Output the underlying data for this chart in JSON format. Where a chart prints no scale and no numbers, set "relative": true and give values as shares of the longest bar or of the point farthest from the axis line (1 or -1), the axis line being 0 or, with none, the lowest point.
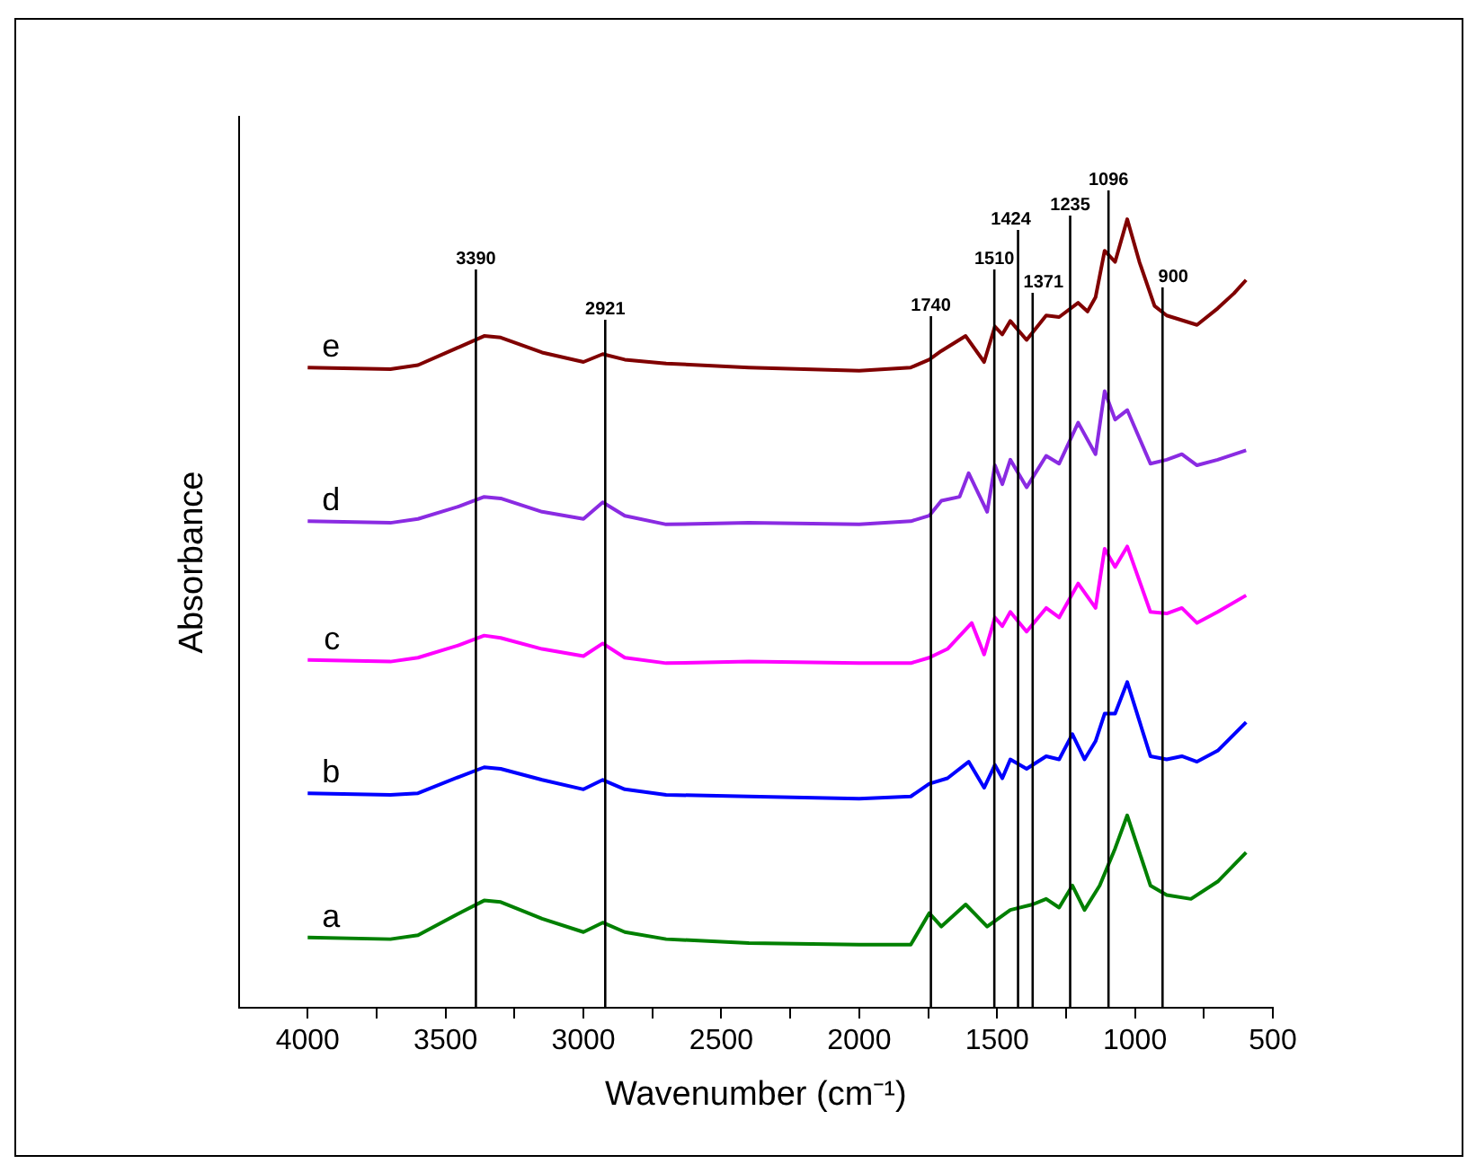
{
  "chart_data": {
    "type": "line",
    "relative": true,
    "xlabel": "Wavenumber (cm⁻¹)",
    "ylabel": "Absorbance",
    "xlim": [
      4250,
      500
    ],
    "xticks": [
      4000,
      {
        "value": 3750,
        "label": null
      },
      3500,
      {
        "value": 3250,
        "label": null
      },
      3000,
      {
        "value": 2750,
        "label": null
      },
      2500,
      {
        "value": 2250,
        "label": null
      },
      2000,
      {
        "value": 1750,
        "label": null
      },
      1500,
      {
        "value": 1250,
        "label": null
      },
      1000,
      {
        "value": 750,
        "label": null
      },
      500
    ],
    "grid": false,
    "legend": false,
    "marker": "none",
    "line_style": "solid",
    "ref_lines": [
      {
        "axis": "x",
        "value": 3390,
        "label": "3390",
        "color": "#000000"
      },
      {
        "axis": "x",
        "value": 2921,
        "label": "2921",
        "color": "#000000"
      },
      {
        "axis": "x",
        "value": 1740,
        "label": "1740",
        "color": "#000000"
      },
      {
        "axis": "x",
        "value": 1510,
        "label": "1510",
        "color": "#000000"
      },
      {
        "axis": "x",
        "value": 1424,
        "label": "1424",
        "color": "#000000"
      },
      {
        "axis": "x",
        "value": 1371,
        "label": "1371",
        "color": "#000000"
      },
      {
        "axis": "x",
        "value": 1235,
        "label": "1235",
        "color": "#000000"
      },
      {
        "axis": "x",
        "value": 1096,
        "label": "1096",
        "color": "#000000"
      },
      {
        "axis": "x",
        "value": 900,
        "label": "900",
        "color": "#000000"
      }
    ],
    "series": [
      {
        "name": "a",
        "color": "#008000",
        "x": [
          4000,
          3700,
          3600,
          3450,
          3360,
          3300,
          3150,
          3000,
          2930,
          2850,
          2700,
          2400,
          2000,
          1813,
          1746,
          1702,
          1614,
          1536,
          1452,
          1371,
          1322,
          1275,
          1227,
          1183,
          1128,
          1072,
          1028,
          944,
          885,
          797,
          700,
          597
        ],
        "values": [
          0.089,
          0.087,
          0.092,
          0.12,
          0.136,
          0.134,
          0.113,
          0.096,
          0.108,
          0.096,
          0.087,
          0.082,
          0.08,
          0.08,
          0.12,
          0.103,
          0.131,
          0.103,
          0.124,
          0.131,
          0.138,
          0.127,
          0.155,
          0.124,
          0.155,
          0.202,
          0.244,
          0.155,
          0.143,
          0.138,
          0.16,
          0.197
        ]
      },
      {
        "name": "b",
        "color": "#0000ff",
        "x": [
          4000,
          3700,
          3600,
          3450,
          3360,
          3300,
          3150,
          3000,
          2930,
          2850,
          2700,
          2400,
          2000,
          1813,
          1746,
          1680,
          1603,
          1547,
          1508,
          1481,
          1452,
          1393,
          1322,
          1275,
          1227,
          1183,
          1143,
          1110,
          1072,
          1028,
          944,
          885,
          830,
          775,
          700,
          597
        ],
        "values": [
          0.272,
          0.27,
          0.272,
          0.293,
          0.305,
          0.303,
          0.289,
          0.277,
          0.289,
          0.277,
          0.27,
          0.268,
          0.265,
          0.268,
          0.284,
          0.291,
          0.312,
          0.279,
          0.308,
          0.291,
          0.315,
          0.303,
          0.319,
          0.315,
          0.347,
          0.315,
          0.338,
          0.373,
          0.373,
          0.413,
          0.319,
          0.315,
          0.319,
          0.312,
          0.326,
          0.362
        ]
      },
      {
        "name": "c",
        "color": "#ff00ff",
        "x": [
          4000,
          3700,
          3600,
          3450,
          3360,
          3300,
          3150,
          3000,
          2930,
          2850,
          2700,
          2400,
          2000,
          1813,
          1746,
          1680,
          1592,
          1547,
          1508,
          1481,
          1452,
          1393,
          1322,
          1275,
          1206,
          1143,
          1110,
          1072,
          1028,
          944,
          885,
          830,
          775,
          700,
          597
        ],
        "values": [
          0.441,
          0.439,
          0.444,
          0.46,
          0.472,
          0.469,
          0.455,
          0.446,
          0.462,
          0.444,
          0.437,
          0.439,
          0.437,
          0.437,
          0.444,
          0.455,
          0.488,
          0.448,
          0.495,
          0.484,
          0.502,
          0.477,
          0.507,
          0.495,
          0.538,
          0.507,
          0.582,
          0.559,
          0.585,
          0.502,
          0.5,
          0.507,
          0.488,
          0.502,
          0.523
        ]
      },
      {
        "name": "d",
        "color": "#8a2be2",
        "x": [
          4000,
          3700,
          3600,
          3450,
          3360,
          3300,
          3150,
          3000,
          2930,
          2850,
          2700,
          2400,
          2000,
          1813,
          1746,
          1702,
          1636,
          1603,
          1536,
          1508,
          1481,
          1452,
          1393,
          1322,
          1275,
          1206,
          1143,
          1110,
          1072,
          1028,
          944,
          885,
          830,
          775,
          700,
          597
        ],
        "values": [
          0.617,
          0.615,
          0.62,
          0.636,
          0.648,
          0.646,
          0.629,
          0.62,
          0.641,
          0.624,
          0.613,
          0.615,
          0.613,
          0.617,
          0.624,
          0.643,
          0.648,
          0.678,
          0.629,
          0.688,
          0.664,
          0.695,
          0.66,
          0.7,
          0.69,
          0.742,
          0.702,
          0.782,
          0.746,
          0.758,
          0.69,
          0.695,
          0.702,
          0.688,
          0.695,
          0.707
        ]
      },
      {
        "name": "e",
        "color": "#800000",
        "x": [
          4000,
          3700,
          3600,
          3450,
          3360,
          3300,
          3150,
          3000,
          2930,
          2850,
          2700,
          2400,
          2000,
          1813,
          1746,
          1702,
          1614,
          1547,
          1508,
          1481,
          1452,
          1393,
          1322,
          1275,
          1206,
          1172,
          1143,
          1110,
          1072,
          1028,
          984,
          929,
          885,
          775,
          700,
          641,
          597
        ],
        "values": [
          0.812,
          0.81,
          0.815,
          0.838,
          0.852,
          0.85,
          0.831,
          0.819,
          0.829,
          0.822,
          0.817,
          0.812,
          0.808,
          0.812,
          0.822,
          0.833,
          0.852,
          0.819,
          0.864,
          0.854,
          0.871,
          0.847,
          0.878,
          0.876,
          0.894,
          0.883,
          0.901,
          0.96,
          0.946,
          1,
          0.946,
          0.89,
          0.878,
          0.866,
          0.887,
          0.906,
          0.923
        ]
      }
    ]
  }
}
